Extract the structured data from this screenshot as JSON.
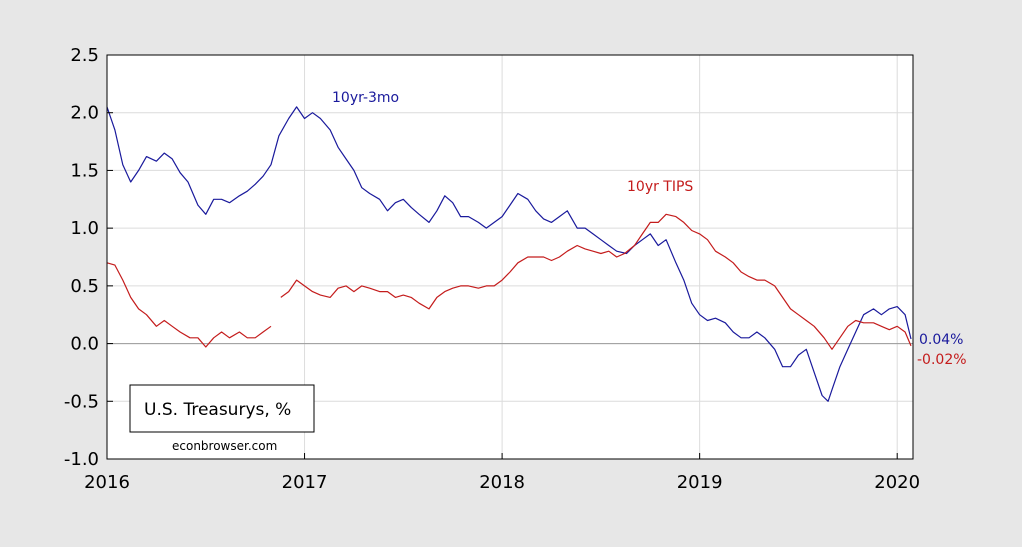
{
  "chart_data": {
    "type": "line",
    "title": "",
    "xlabel": "",
    "ylabel": "",
    "xlim": [
      2016.0,
      2020.08
    ],
    "ylim": [
      -1.0,
      2.5
    ],
    "y_ticks": [
      "2.5",
      "2.0",
      "1.5",
      "1.0",
      "0.5",
      "0.0",
      "-0.5",
      "-1.0"
    ],
    "x_ticks": [
      "2016",
      "2017",
      "2018",
      "2019",
      "2020"
    ],
    "grid": true,
    "legend_box_text": "U.S. Treasurys, %",
    "credit": "econbrowser.com",
    "series": [
      {
        "name": "10yr-3mo",
        "color": "#1a1a9c",
        "end_label": "0.04%",
        "points": [
          [
            2016.0,
            2.05
          ],
          [
            2016.04,
            1.85
          ],
          [
            2016.08,
            1.55
          ],
          [
            2016.12,
            1.4
          ],
          [
            2016.16,
            1.5
          ],
          [
            2016.2,
            1.62
          ],
          [
            2016.25,
            1.58
          ],
          [
            2016.29,
            1.65
          ],
          [
            2016.33,
            1.6
          ],
          [
            2016.37,
            1.48
          ],
          [
            2016.41,
            1.4
          ],
          [
            2016.46,
            1.2
          ],
          [
            2016.5,
            1.12
          ],
          [
            2016.54,
            1.25
          ],
          [
            2016.58,
            1.25
          ],
          [
            2016.62,
            1.22
          ],
          [
            2016.67,
            1.28
          ],
          [
            2016.71,
            1.32
          ],
          [
            2016.75,
            1.38
          ],
          [
            2016.79,
            1.45
          ],
          [
            2016.83,
            1.55
          ],
          [
            2016.87,
            1.8
          ],
          [
            2016.92,
            1.95
          ],
          [
            2016.96,
            2.05
          ],
          [
            2017.0,
            1.95
          ],
          [
            2017.04,
            2.0
          ],
          [
            2017.08,
            1.95
          ],
          [
            2017.13,
            1.85
          ],
          [
            2017.17,
            1.7
          ],
          [
            2017.21,
            1.6
          ],
          [
            2017.25,
            1.5
          ],
          [
            2017.29,
            1.35
          ],
          [
            2017.33,
            1.3
          ],
          [
            2017.38,
            1.25
          ],
          [
            2017.42,
            1.15
          ],
          [
            2017.46,
            1.22
          ],
          [
            2017.5,
            1.25
          ],
          [
            2017.54,
            1.18
          ],
          [
            2017.58,
            1.12
          ],
          [
            2017.63,
            1.05
          ],
          [
            2017.67,
            1.15
          ],
          [
            2017.71,
            1.28
          ],
          [
            2017.75,
            1.22
          ],
          [
            2017.79,
            1.1
          ],
          [
            2017.83,
            1.1
          ],
          [
            2017.88,
            1.05
          ],
          [
            2017.92,
            1.0
          ],
          [
            2017.96,
            1.05
          ],
          [
            2018.0,
            1.1
          ],
          [
            2018.04,
            1.2
          ],
          [
            2018.08,
            1.3
          ],
          [
            2018.13,
            1.25
          ],
          [
            2018.17,
            1.15
          ],
          [
            2018.21,
            1.08
          ],
          [
            2018.25,
            1.05
          ],
          [
            2018.29,
            1.1
          ],
          [
            2018.33,
            1.15
          ],
          [
            2018.38,
            1.0
          ],
          [
            2018.42,
            1.0
          ],
          [
            2018.46,
            0.95
          ],
          [
            2018.5,
            0.9
          ],
          [
            2018.54,
            0.85
          ],
          [
            2018.58,
            0.8
          ],
          [
            2018.63,
            0.78
          ],
          [
            2018.67,
            0.85
          ],
          [
            2018.71,
            0.9
          ],
          [
            2018.75,
            0.95
          ],
          [
            2018.79,
            0.85
          ],
          [
            2018.83,
            0.9
          ],
          [
            2018.88,
            0.7
          ],
          [
            2018.92,
            0.55
          ],
          [
            2018.96,
            0.35
          ],
          [
            2019.0,
            0.25
          ],
          [
            2019.04,
            0.2
          ],
          [
            2019.08,
            0.22
          ],
          [
            2019.13,
            0.18
          ],
          [
            2019.17,
            0.1
          ],
          [
            2019.21,
            0.05
          ],
          [
            2019.25,
            0.05
          ],
          [
            2019.29,
            0.1
          ],
          [
            2019.33,
            0.05
          ],
          [
            2019.38,
            -0.05
          ],
          [
            2019.42,
            -0.2
          ],
          [
            2019.46,
            -0.2
          ],
          [
            2019.5,
            -0.1
          ],
          [
            2019.54,
            -0.05
          ],
          [
            2019.58,
            -0.25
          ],
          [
            2019.62,
            -0.45
          ],
          [
            2019.65,
            -0.5
          ],
          [
            2019.67,
            -0.4
          ],
          [
            2019.71,
            -0.2
          ],
          [
            2019.75,
            -0.05
          ],
          [
            2019.79,
            0.1
          ],
          [
            2019.83,
            0.25
          ],
          [
            2019.88,
            0.3
          ],
          [
            2019.92,
            0.25
          ],
          [
            2019.96,
            0.3
          ],
          [
            2020.0,
            0.32
          ],
          [
            2020.04,
            0.25
          ],
          [
            2020.07,
            0.04
          ]
        ]
      },
      {
        "name": "10yr TIPS",
        "color": "#c41c1c",
        "end_label": "-0.02%",
        "points": [
          [
            2016.0,
            0.7
          ],
          [
            2016.04,
            0.68
          ],
          [
            2016.08,
            0.55
          ],
          [
            2016.12,
            0.4
          ],
          [
            2016.16,
            0.3
          ],
          [
            2016.2,
            0.25
          ],
          [
            2016.25,
            0.15
          ],
          [
            2016.29,
            0.2
          ],
          [
            2016.33,
            0.15
          ],
          [
            2016.37,
            0.1
          ],
          [
            2016.42,
            0.05
          ],
          [
            2016.46,
            0.05
          ],
          [
            2016.5,
            -0.03
          ],
          [
            2016.54,
            0.05
          ],
          [
            2016.58,
            0.1
          ],
          [
            2016.62,
            0.05
          ],
          [
            2016.67,
            0.1
          ],
          [
            2016.71,
            0.05
          ],
          [
            2016.75,
            0.05
          ],
          [
            2016.79,
            0.1
          ],
          [
            2016.83,
            0.15
          ],
          [
            2016.88,
            null
          ],
          [
            2016.88,
            0.4
          ],
          [
            2016.92,
            0.45
          ],
          [
            2016.96,
            0.55
          ],
          [
            2017.0,
            0.5
          ],
          [
            2017.04,
            0.45
          ],
          [
            2017.08,
            0.42
          ],
          [
            2017.13,
            0.4
          ],
          [
            2017.17,
            0.48
          ],
          [
            2017.21,
            0.5
          ],
          [
            2017.25,
            0.45
          ],
          [
            2017.29,
            0.5
          ],
          [
            2017.33,
            0.48
          ],
          [
            2017.38,
            0.45
          ],
          [
            2017.42,
            0.45
          ],
          [
            2017.46,
            0.4
          ],
          [
            2017.5,
            0.42
          ],
          [
            2017.54,
            0.4
          ],
          [
            2017.58,
            0.35
          ],
          [
            2017.63,
            0.3
          ],
          [
            2017.67,
            0.4
          ],
          [
            2017.71,
            0.45
          ],
          [
            2017.75,
            0.48
          ],
          [
            2017.79,
            0.5
          ],
          [
            2017.83,
            0.5
          ],
          [
            2017.88,
            0.48
          ],
          [
            2017.92,
            0.5
          ],
          [
            2017.96,
            0.5
          ],
          [
            2018.0,
            0.55
          ],
          [
            2018.04,
            0.62
          ],
          [
            2018.08,
            0.7
          ],
          [
            2018.13,
            0.75
          ],
          [
            2018.17,
            0.75
          ],
          [
            2018.21,
            0.75
          ],
          [
            2018.25,
            0.72
          ],
          [
            2018.29,
            0.75
          ],
          [
            2018.33,
            0.8
          ],
          [
            2018.38,
            0.85
          ],
          [
            2018.42,
            0.82
          ],
          [
            2018.46,
            0.8
          ],
          [
            2018.5,
            0.78
          ],
          [
            2018.54,
            0.8
          ],
          [
            2018.58,
            0.75
          ],
          [
            2018.62,
            0.78
          ],
          [
            2018.67,
            0.85
          ],
          [
            2018.71,
            0.95
          ],
          [
            2018.75,
            1.05
          ],
          [
            2018.79,
            1.05
          ],
          [
            2018.83,
            1.12
          ],
          [
            2018.88,
            1.1
          ],
          [
            2018.92,
            1.05
          ],
          [
            2018.96,
            0.98
          ],
          [
            2019.0,
            0.95
          ],
          [
            2019.04,
            0.9
          ],
          [
            2019.08,
            0.8
          ],
          [
            2019.13,
            0.75
          ],
          [
            2019.17,
            0.7
          ],
          [
            2019.21,
            0.62
          ],
          [
            2019.25,
            0.58
          ],
          [
            2019.29,
            0.55
          ],
          [
            2019.33,
            0.55
          ],
          [
            2019.38,
            0.5
          ],
          [
            2019.42,
            0.4
          ],
          [
            2019.46,
            0.3
          ],
          [
            2019.5,
            0.25
          ],
          [
            2019.54,
            0.2
          ],
          [
            2019.58,
            0.15
          ],
          [
            2019.63,
            0.05
          ],
          [
            2019.67,
            -0.05
          ],
          [
            2019.71,
            0.05
          ],
          [
            2019.75,
            0.15
          ],
          [
            2019.79,
            0.2
          ],
          [
            2019.83,
            0.18
          ],
          [
            2019.88,
            0.18
          ],
          [
            2019.92,
            0.15
          ],
          [
            2019.96,
            0.12
          ],
          [
            2020.0,
            0.15
          ],
          [
            2020.04,
            0.1
          ],
          [
            2020.07,
            -0.02
          ]
        ]
      }
    ]
  }
}
